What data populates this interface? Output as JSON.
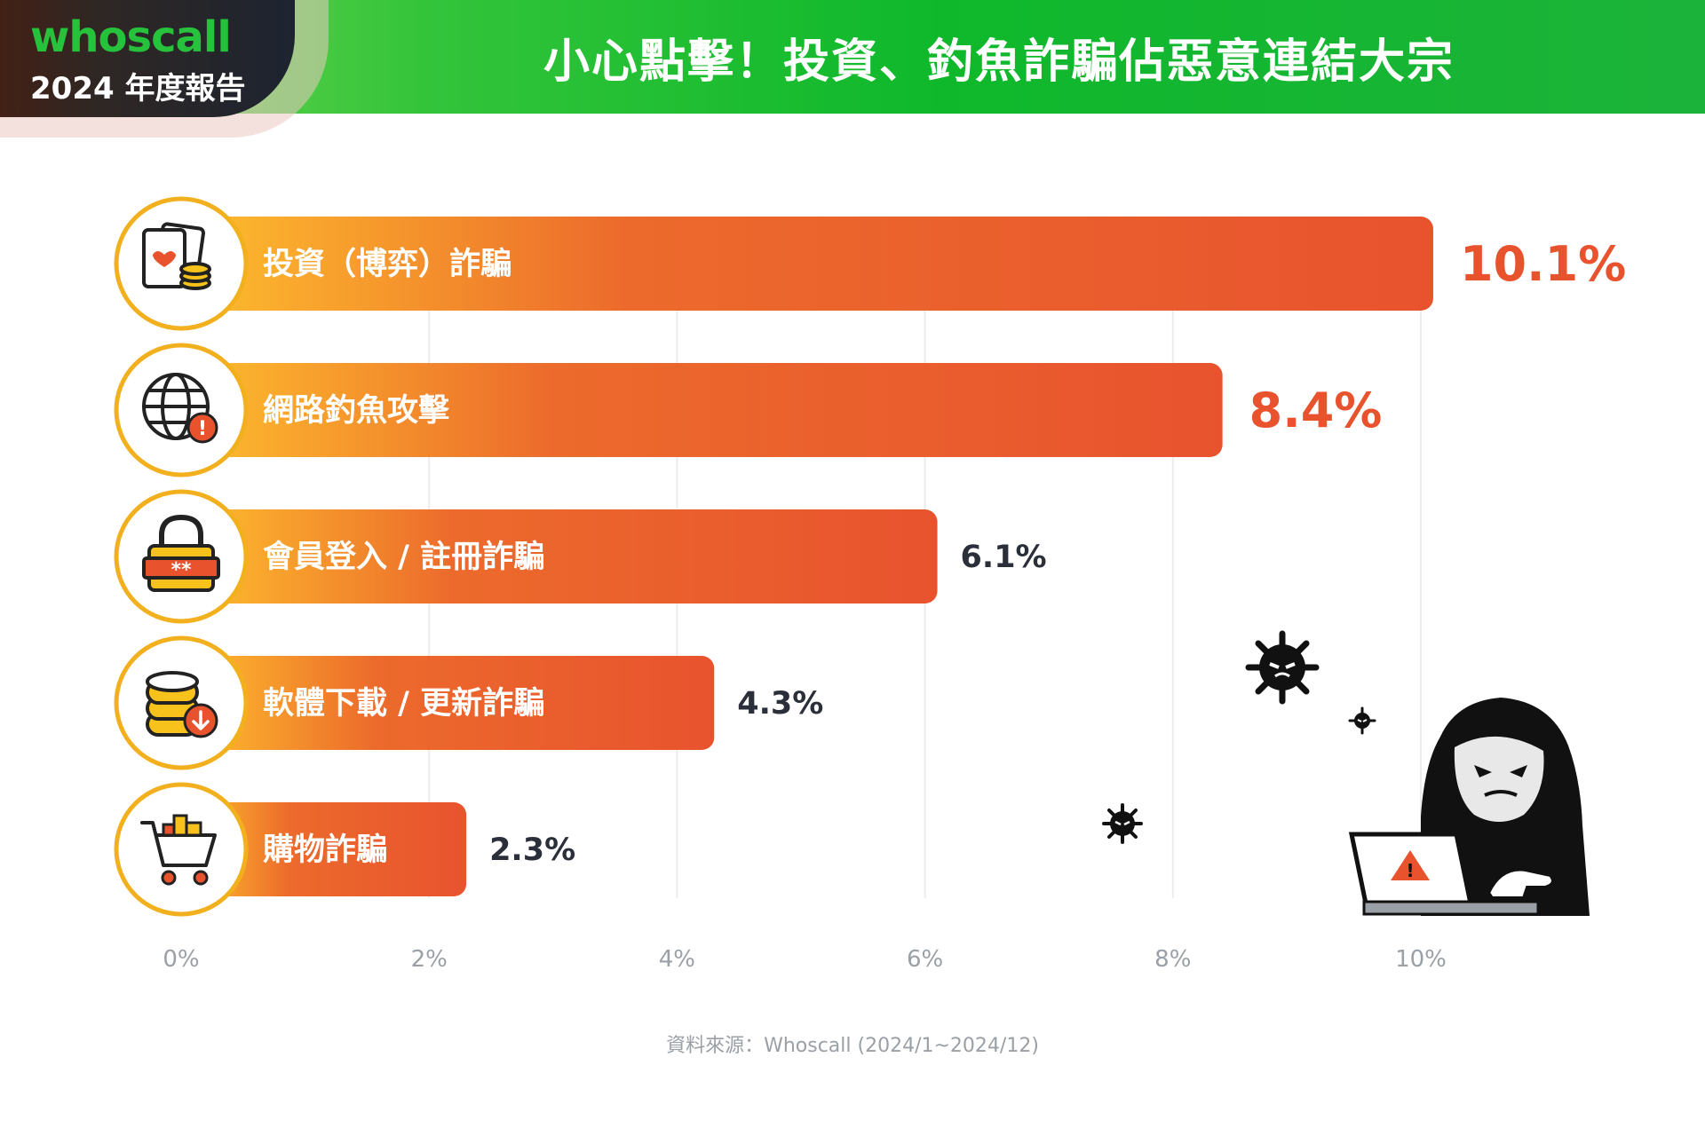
{
  "header": {
    "brand": "whoscall",
    "report": "2024 年度報告",
    "title": "小心點擊！投資、釣魚詐騙佔惡意連結大宗"
  },
  "colors": {
    "bar_start": "#fdbb2d",
    "bar_end": "#e8532e",
    "highlight_value": "#e8532e",
    "normal_value": "#2b2f3a",
    "icon_ring": "#f2b01e",
    "header_green": "#0fb82b"
  },
  "chart_data": {
    "type": "bar",
    "orientation": "horizontal",
    "categories": [
      "投資（博弈）詐騙",
      "網路釣魚攻擊",
      "會員登入 / 註冊詐騙",
      "軟體下載 / 更新詐騙",
      "購物詐騙"
    ],
    "values": [
      10.1,
      8.4,
      6.1,
      4.3,
      2.3
    ],
    "value_labels": [
      "10.1%",
      "8.4%",
      "6.1%",
      "4.3%",
      "2.3%"
    ],
    "highlighted": [
      true,
      true,
      false,
      false,
      false
    ],
    "icons": [
      "cards-coins-icon",
      "globe-alert-icon",
      "padlock-password-icon",
      "database-download-icon",
      "shopping-cart-icon"
    ],
    "xlim": [
      0,
      10
    ],
    "xticks": [
      "0%",
      "2%",
      "4%",
      "6%",
      "8%",
      "10%"
    ],
    "grid": true
  },
  "source": "資料來源：Whoscall (2024/1~2024/12)"
}
